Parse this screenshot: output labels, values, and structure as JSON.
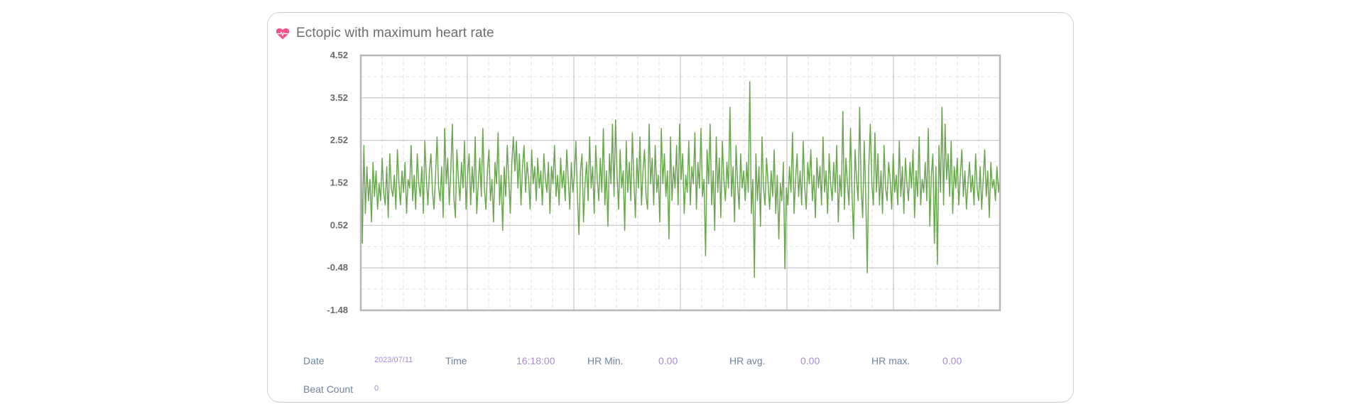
{
  "card": {
    "title": "Ectopic with maximum heart rate",
    "icon": "heart-pulse-icon",
    "icon_color": "#f0538a"
  },
  "chart_data": {
    "type": "line",
    "title": "",
    "xlabel": "",
    "ylabel": "",
    "ylim": [
      -1.48,
      4.52
    ],
    "yticks": [
      "4.52",
      "3.52",
      "2.52",
      "1.52",
      "0.52",
      "-0.48",
      "-1.48"
    ],
    "grid": true,
    "series_color": "#6aa84f",
    "series": [
      {
        "values": [
          2.9,
          0.1,
          2.4,
          0.8,
          1.9,
          1.1,
          1.6,
          0.6,
          2.0,
          1.2,
          1.8,
          0.9,
          1.5,
          1.1,
          2.1,
          1.3,
          1.0,
          1.9,
          0.7,
          2.2,
          1.4,
          1.2,
          1.7,
          0.9,
          2.3,
          1.5,
          1.0,
          1.8,
          1.3,
          2.0,
          0.8,
          1.6,
          1.4,
          2.4,
          1.1,
          1.7,
          0.9,
          2.2,
          1.5,
          1.2,
          1.9,
          0.8,
          2.5,
          1.6,
          1.0,
          1.8,
          2.2,
          1.3,
          0.9,
          1.7,
          2.6,
          1.4,
          1.1,
          1.9,
          0.7,
          2.8,
          1.5,
          2.1,
          1.0,
          1.8,
          2.9,
          1.2,
          0.7,
          2.3,
          1.6,
          1.1,
          2.0,
          1.4,
          2.5,
          0.9,
          1.7,
          2.2,
          1.0,
          1.9,
          1.3,
          2.6,
          0.8,
          1.5,
          2.1,
          1.2,
          2.8,
          1.4,
          0.9,
          1.8,
          2.3,
          1.1,
          1.6,
          0.6,
          2.0,
          1.5,
          2.7,
          1.0,
          1.7,
          0.4,
          1.9,
          1.2,
          2.4,
          1.6,
          0.8,
          2.0,
          2.6,
          1.8,
          2.5,
          1.4,
          2.2,
          1.0,
          1.9,
          2.4,
          1.3,
          2.0,
          1.6,
          0.9,
          2.3,
          1.5,
          1.9,
          1.1,
          2.1,
          1.4,
          1.8,
          1.0,
          2.2,
          1.6,
          1.3,
          2.0,
          0.8,
          1.9,
          1.5,
          2.4,
          1.2,
          1.7,
          1.0,
          2.1,
          1.4,
          1.8,
          1.1,
          2.3,
          1.6,
          0.9,
          2.0,
          1.3,
          1.7,
          2.5,
          1.2,
          0.3,
          1.8,
          2.2,
          0.6,
          1.5,
          2.0,
          1.1,
          2.6,
          1.4,
          1.9,
          0.8,
          2.4,
          1.6,
          1.1,
          2.1,
          1.3,
          2.8,
          1.0,
          1.8,
          0.5,
          2.2,
          1.5,
          2.9,
          1.2,
          3.0,
          1.7,
          0.9,
          2.3,
          1.4,
          1.8,
          0.4,
          2.5,
          1.3,
          2.0,
          1.1,
          2.7,
          1.6,
          0.7,
          2.1,
          1.4,
          2.6,
          1.0,
          1.8,
          2.3,
          1.2,
          0.9,
          2.9,
          1.5,
          2.1,
          1.0,
          2.4,
          1.3,
          1.7,
          0.6,
          2.8,
          1.5,
          2.2,
          1.2,
          1.8,
          0.2,
          2.6,
          1.1,
          1.9,
          1.4,
          2.4,
          1.0,
          2.9,
          1.6,
          2.2,
          0.8,
          1.7,
          1.3,
          2.5,
          1.0,
          1.9,
          1.5,
          2.7,
          0.9,
          2.0,
          1.4,
          2.8,
          1.2,
          1.6,
          -0.2,
          2.3,
          1.5,
          2.9,
          1.0,
          1.8,
          0.4,
          2.6,
          1.3,
          2.1,
          0.7,
          2.5,
          1.6,
          1.1,
          2.0,
          1.4,
          3.3,
          1.2,
          1.9,
          0.6,
          2.4,
          1.5,
          0.9,
          2.2,
          1.4,
          1.8,
          1.1,
          2.0,
          1.3,
          3.9,
          0.8,
          1.6,
          -0.7,
          2.2,
          1.1,
          1.9,
          0.5,
          2.6,
          1.4,
          1.0,
          2.1,
          1.5,
          0.9,
          1.8,
          1.2,
          2.3,
          0.8,
          1.7,
          0.2,
          1.5,
          1.1,
          2.0,
          -0.5,
          1.4,
          1.0,
          1.9,
          1.3,
          2.7,
          0.8,
          1.6,
          2.2,
          1.2,
          1.8,
          1.0,
          2.5,
          1.4,
          0.9,
          2.0,
          1.5,
          2.3,
          1.1,
          1.7,
          0.7,
          2.1,
          1.4,
          1.9,
          1.0,
          2.6,
          1.3,
          1.8,
          0.8,
          2.2,
          1.5,
          1.1,
          2.0,
          1.3,
          2.4,
          0.6,
          1.7,
          1.2,
          3.2,
          0.9,
          2.1,
          1.5,
          1.0,
          2.8,
          1.3,
          0.2,
          2.3,
          1.6,
          1.1,
          3.3,
          1.4,
          0.7,
          2.5,
          1.2,
          -0.6,
          1.9,
          2.9,
          1.5,
          1.0,
          2.7,
          1.3,
          2.2,
          1.0,
          1.8,
          0.8,
          2.4,
          1.4,
          1.1,
          2.0,
          1.6,
          0.9,
          2.2,
          1.3,
          1.7,
          1.0,
          2.5,
          1.2,
          1.9,
          0.8,
          2.1,
          1.5,
          1.1,
          2.0,
          1.4,
          2.3,
          0.7,
          1.8,
          1.2,
          2.6,
          1.0,
          1.6,
          1.3,
          2.0,
          1.1,
          2.8,
          0.5,
          1.7,
          2.2,
          0.1,
          1.9,
          -0.4,
          2.4,
          1.3,
          3.3,
          1.0,
          2.9,
          1.6,
          2.2,
          1.2,
          2.5,
          0.8,
          1.9,
          1.4,
          2.1,
          1.0,
          1.7,
          2.3,
          1.2,
          1.8,
          0.9,
          1.5,
          2.0,
          1.3,
          1.7,
          1.0,
          2.2,
          1.4,
          1.1,
          1.9,
          0.9,
          1.6,
          2.3,
          1.2,
          1.8,
          0.7,
          2.0,
          1.4,
          1.6,
          1.1,
          1.9,
          1.3,
          1.7
        ]
      }
    ]
  },
  "info": {
    "date_label": "Date",
    "date_value": "2023/07/11",
    "time_label": "Time",
    "time_value": "16:18:00",
    "hr_min_label": "HR Min.",
    "hr_min_value": "0.00",
    "hr_avg_label": "HR avg.",
    "hr_avg_value": "0.00",
    "hr_max_label": "HR max.",
    "hr_max_value": "0.00",
    "beat_count_label": "Beat Count",
    "beat_count_value": "0"
  }
}
